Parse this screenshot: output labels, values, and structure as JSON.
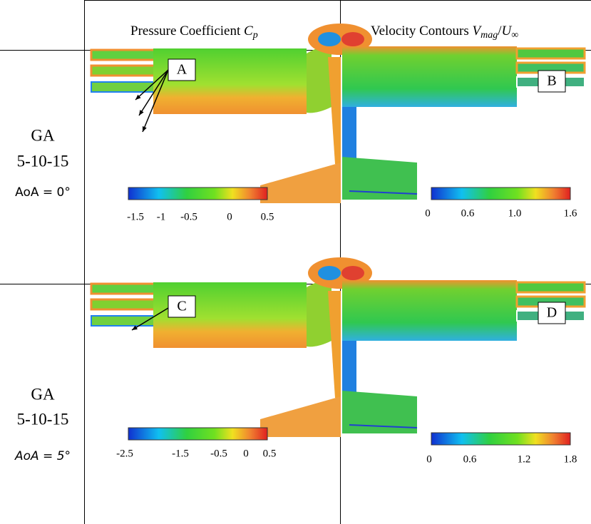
{
  "header": {
    "cp": {
      "text": "Pressure Coefficient ",
      "symbol": "C",
      "subscript": "p"
    },
    "velocity": {
      "text": "Velocity Contours ",
      "symbol": "V",
      "subscript": "mag",
      "divider": "/",
      "symbol2": "U",
      "subscript2": "∞"
    }
  },
  "rows": [
    {
      "label": [
        "GA",
        "5-10-15"
      ],
      "aoa": "AoA = 0°",
      "callouts": [
        "A",
        "B"
      ],
      "cp_ticks": [
        "-1.5",
        "-1",
        "-0.5",
        "0",
        "0.5"
      ],
      "velocity_ticks": [
        "0",
        "0.6",
        "1.0",
        "1.6"
      ]
    },
    {
      "label": [
        "GA",
        "5-10-15"
      ],
      "aoa": "AoA = 5°",
      "callouts": [
        "C",
        "D"
      ],
      "cp_ticks": [
        "-2.5",
        "-1.5",
        "-0.5",
        "0",
        "0.5"
      ],
      "velocity_ticks": [
        "0",
        "0.6",
        "1.2",
        "1.8"
      ]
    }
  ]
}
